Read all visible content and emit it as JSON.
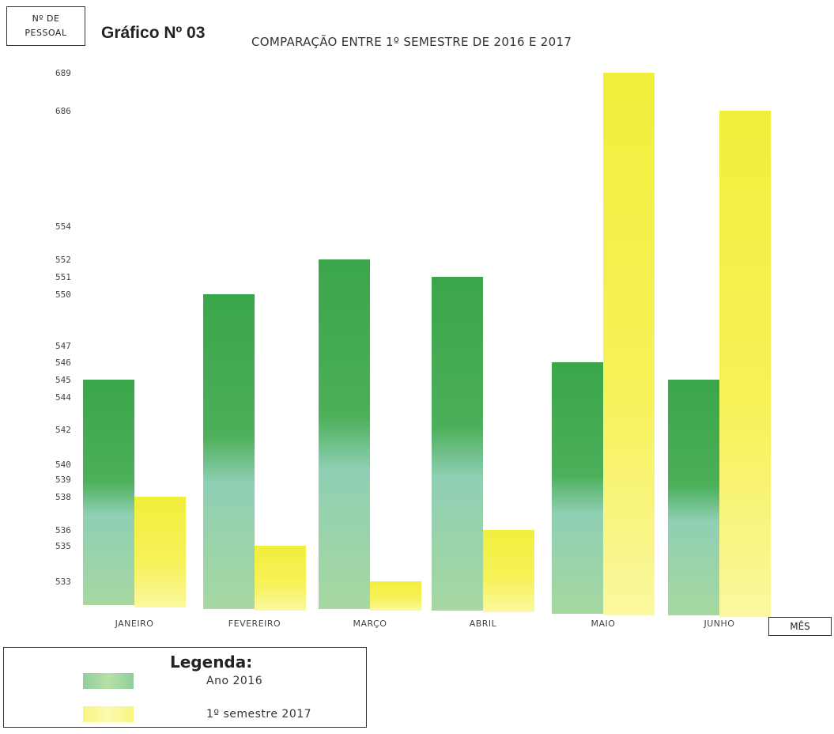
{
  "header": {
    "y_unit_line1": "Nº DE",
    "y_unit_line2": "PESSOAL",
    "chart_number": "Gráfico Nº 03",
    "title": "COMPARAÇÃO ENTRE 1º SEMESTRE DE 2016 E 2017",
    "x_unit": "MÊS"
  },
  "legend": {
    "title": "Legenda:",
    "items": [
      {
        "label": "Ano 2016",
        "color": "#3aa64a"
      },
      {
        "label": "1º semestre 2017",
        "color": "#f2ee3c"
      }
    ]
  },
  "colors": {
    "series_2016": "#3aa64a",
    "series_2016_light": "#8fcfb4",
    "series_2017": "#f2ee3c",
    "series_2017_light": "#fbf8a0"
  },
  "chart_data": {
    "type": "bar",
    "title": "COMPARAÇÃO ENTRE 1º SEMESTRE DE 2016 E 2017",
    "xlabel": "MÊS",
    "ylabel": "Nº DE PESSOAL",
    "categories": [
      "JANEIRO",
      "FEVEREIRO",
      "MARÇO",
      "ABRIL",
      "MAIO",
      "JUNHO"
    ],
    "series": [
      {
        "name": "Ano 2016",
        "values": [
          545,
          550,
          552,
          551,
          546,
          545
        ]
      },
      {
        "name": "1º semestre 2017",
        "values": [
          538,
          535,
          533,
          536,
          689,
          686
        ]
      }
    ],
    "y_ticks": [
      533,
      535,
      536,
      538,
      539,
      540,
      542,
      544,
      545,
      546,
      547,
      550,
      551,
      552,
      554,
      686,
      689
    ],
    "y_scale": "non-linear (ticks positioned as printed)",
    "grid": false,
    "legend_position": "bottom-left"
  }
}
